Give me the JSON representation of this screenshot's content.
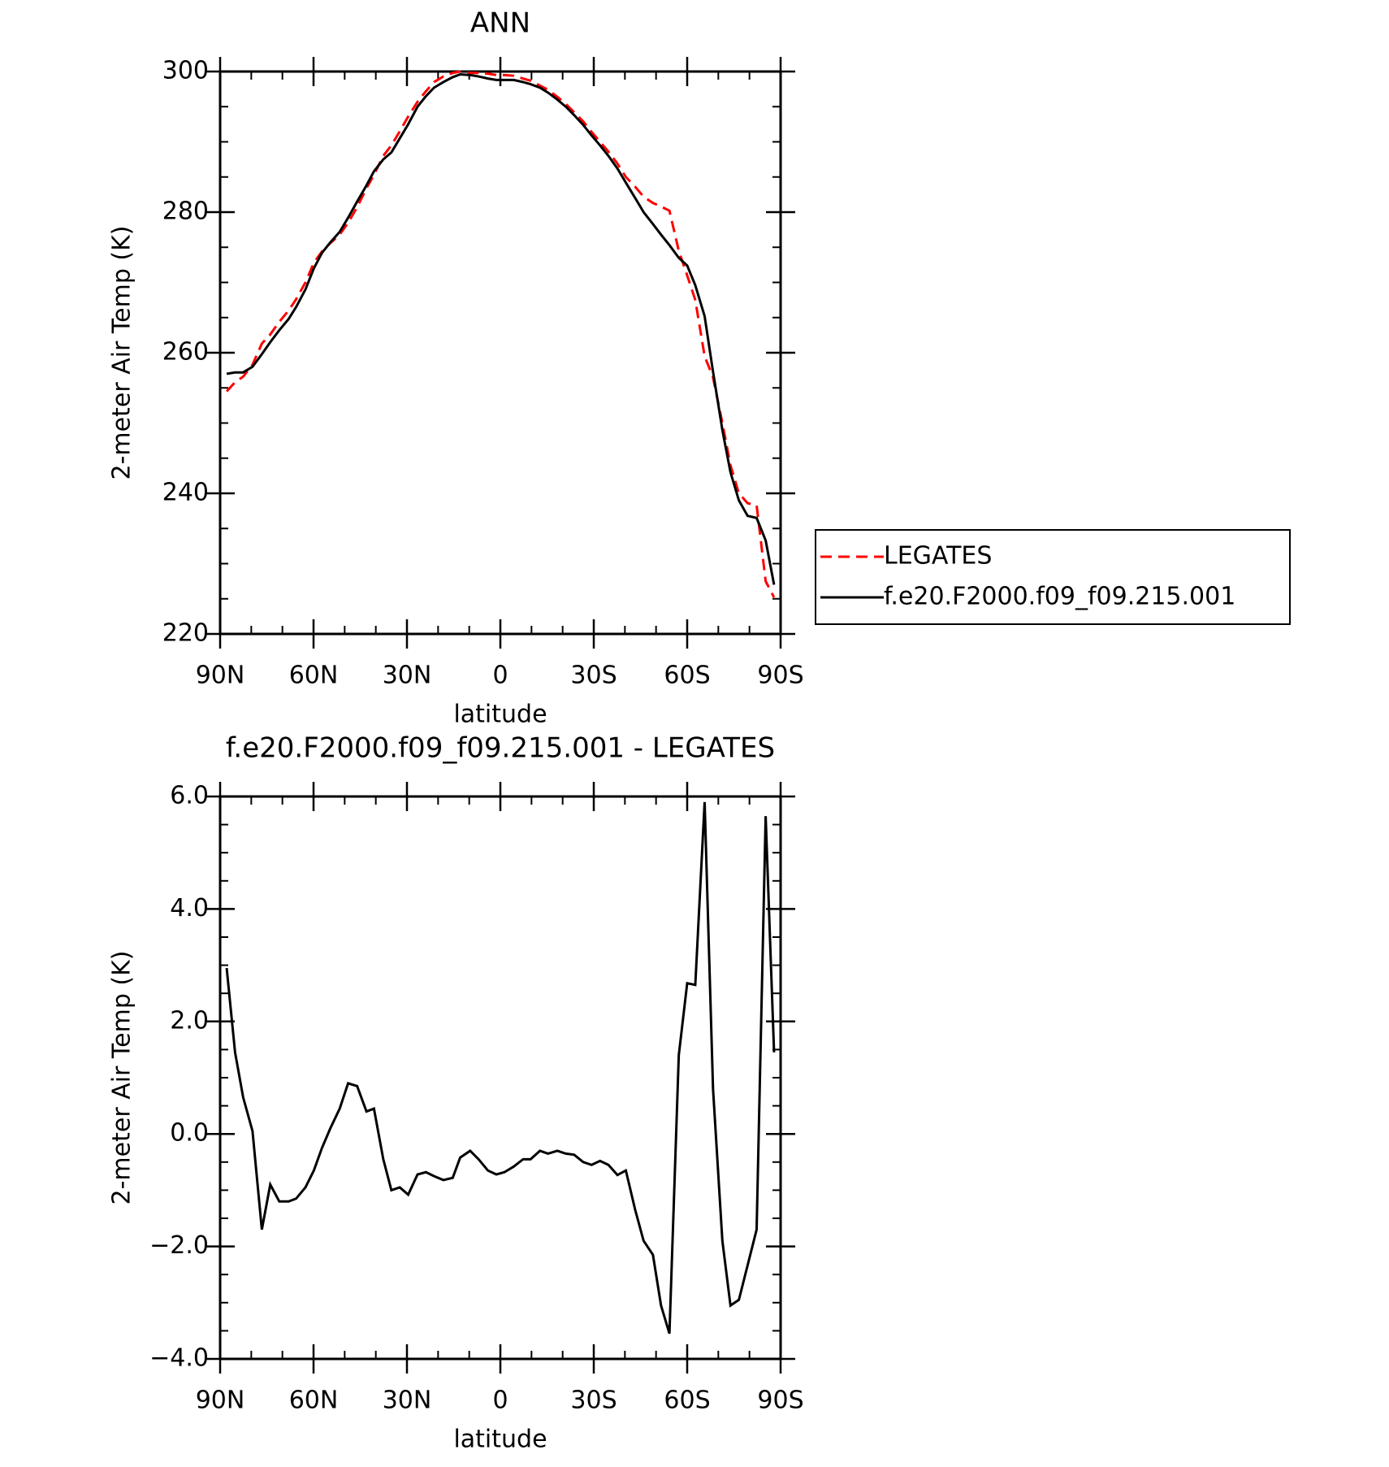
{
  "chart_data": [
    {
      "type": "line",
      "title": "ANN",
      "x_label": "latitude",
      "y_label": "2-meter Air Temp (K)",
      "x": [
        87.9,
        85.2,
        82.6,
        79.6,
        76.6,
        73.9,
        71.0,
        68.0,
        65.6,
        62.6,
        59.9,
        57.3,
        54.6,
        51.6,
        48.9,
        46.0,
        43.0,
        40.6,
        37.6,
        35.0,
        32.3,
        29.6,
        26.6,
        23.9,
        21.3,
        18.3,
        15.3,
        12.9,
        9.7,
        7.0,
        4.0,
        1.3,
        -1.3,
        -4.3,
        -7.3,
        -9.7,
        -12.7,
        -15.3,
        -18.3,
        -21.0,
        -23.7,
        -26.6,
        -29.3,
        -32.0,
        -34.7,
        -37.6,
        -40.3,
        -43.3,
        -46.0,
        -49.0,
        -51.6,
        -54.3,
        -57.3,
        -60.0,
        -62.6,
        -65.6,
        -68.3,
        -71.3,
        -73.9,
        -76.6,
        -79.4,
        -82.3,
        -85.2,
        -87.9
      ],
      "series": [
        {
          "name": "LEGATES",
          "color": "#ff0000",
          "line_style": "dashed",
          "values": [
            254.5,
            255.8,
            256.6,
            258.3,
            261.3,
            262.6,
            264.4,
            266.0,
            267.6,
            270.0,
            272.8,
            274.4,
            275.6,
            276.8,
            278.5,
            280.7,
            283.4,
            285.3,
            288.0,
            289.5,
            291.5,
            293.6,
            295.7,
            297.2,
            298.5,
            299.3,
            299.8,
            300.0,
            299.8,
            299.8,
            299.7,
            299.5,
            299.5,
            299.4,
            299.0,
            298.7,
            298.0,
            297.4,
            296.4,
            295.4,
            294.2,
            292.9,
            291.4,
            290.0,
            288.6,
            286.9,
            285.0,
            283.6,
            282.2,
            281.3,
            280.8,
            280.2,
            274.5,
            271.0,
            267.5,
            259.5,
            256.5,
            250.0,
            244.0,
            240.0,
            238.6,
            238.3,
            227.5,
            225.2
          ]
        },
        {
          "name": "f.e20.F2000.f09_f09.215.001",
          "color": "#000000",
          "line_style": "solid",
          "values": [
            257.0,
            257.2,
            257.2,
            258.0,
            259.8,
            261.5,
            263.2,
            264.8,
            266.5,
            269.0,
            272.0,
            274.2,
            275.7,
            277.2,
            279.2,
            281.5,
            283.8,
            285.8,
            287.5,
            288.5,
            290.5,
            292.5,
            295.0,
            296.5,
            297.7,
            298.5,
            299.2,
            299.6,
            299.5,
            299.3,
            299.0,
            298.8,
            298.8,
            298.8,
            298.5,
            298.2,
            297.7,
            297.0,
            296.0,
            295.0,
            293.8,
            292.4,
            290.9,
            289.5,
            288.0,
            286.2,
            284.2,
            282.0,
            280.0,
            278.3,
            276.8,
            275.3,
            273.5,
            272.4,
            269.6,
            265.2,
            257.3,
            249.0,
            243.0,
            239.0,
            236.8,
            236.5,
            233.3,
            227.0
          ]
        }
      ],
      "xlim": [
        90,
        -90
      ],
      "xticks": [
        {
          "value": 90,
          "label": "90N"
        },
        {
          "value": 60,
          "label": "60N"
        },
        {
          "value": 30,
          "label": "30N"
        },
        0,
        {
          "value": -30,
          "label": "30S"
        },
        {
          "value": -60,
          "label": "60S"
        },
        {
          "value": -90,
          "label": "90S"
        }
      ],
      "ylim": [
        220,
        300
      ],
      "yticks": [
        220,
        240,
        260,
        280,
        300
      ],
      "legend": "right"
    },
    {
      "type": "line",
      "title": "f.e20.F2000.f09_f09.215.001 - LEGATES",
      "x_label": "latitude",
      "y_label": "2-meter Air Temp (K)",
      "x": [
        87.9,
        85.2,
        82.6,
        79.6,
        76.6,
        73.9,
        71.0,
        68.0,
        65.6,
        62.6,
        59.9,
        57.3,
        54.6,
        51.6,
        48.9,
        46.0,
        43.0,
        40.6,
        37.6,
        35.0,
        32.3,
        29.6,
        26.6,
        23.9,
        21.3,
        18.3,
        15.3,
        12.9,
        9.7,
        7.0,
        4.0,
        1.3,
        -1.3,
        -4.3,
        -7.3,
        -9.7,
        -12.7,
        -15.3,
        -18.3,
        -21.0,
        -23.7,
        -26.6,
        -29.3,
        -32.0,
        -34.7,
        -37.6,
        -40.3,
        -43.3,
        -46.0,
        -49.0,
        -51.6,
        -54.3,
        -57.3,
        -60.0,
        -62.6,
        -65.6,
        -68.3,
        -71.3,
        -73.9,
        -76.6,
        -82.3,
        -85.2,
        -87.9
      ],
      "series": [
        {
          "color": "#000000",
          "line_style": "solid",
          "values": [
            2.95,
            1.45,
            0.65,
            0.05,
            -1.7,
            -0.9,
            -1.2,
            -1.2,
            -1.15,
            -0.95,
            -0.65,
            -0.25,
            0.1,
            0.45,
            0.9,
            0.85,
            0.4,
            0.45,
            -0.45,
            -1.0,
            -0.95,
            -1.08,
            -0.72,
            -0.68,
            -0.75,
            -0.82,
            -0.78,
            -0.42,
            -0.3,
            -0.45,
            -0.65,
            -0.72,
            -0.68,
            -0.58,
            -0.45,
            -0.45,
            -0.3,
            -0.35,
            -0.3,
            -0.35,
            -0.37,
            -0.5,
            -0.55,
            -0.48,
            -0.55,
            -0.73,
            -0.65,
            -1.35,
            -1.9,
            -2.15,
            -3.05,
            -3.55,
            1.4,
            2.68,
            2.65,
            5.9,
            0.8,
            -1.9,
            -3.05,
            -2.95,
            -1.7,
            5.65,
            1.45
          ]
        }
      ],
      "xlim": [
        90,
        -90
      ],
      "xticks": [
        {
          "value": 90,
          "label": "90N"
        },
        {
          "value": 60,
          "label": "60N"
        },
        {
          "value": 30,
          "label": "30N"
        },
        0,
        {
          "value": -30,
          "label": "30S"
        },
        {
          "value": -60,
          "label": "60S"
        },
        {
          "value": -90,
          "label": "90S"
        }
      ],
      "ylim": [
        -4,
        6
      ],
      "yticks": [
        {
          "value": -4,
          "label": "−4.0"
        },
        {
          "value": -2,
          "label": "−2.0"
        },
        {
          "value": 0,
          "label": "0.0"
        },
        {
          "value": 2,
          "label": "2.0"
        },
        {
          "value": 4,
          "label": "4.0"
        },
        {
          "value": 6,
          "label": "6.0"
        }
      ]
    }
  ]
}
